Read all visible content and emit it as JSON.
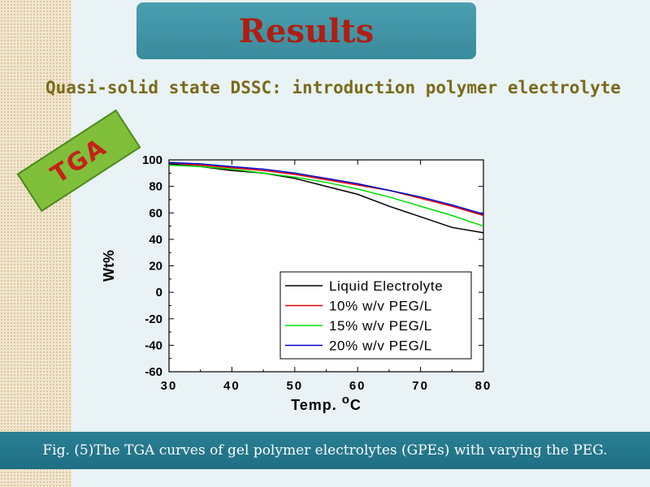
{
  "slide": {
    "title": "Results",
    "subtitle": "Quasi-solid state DSSC: introduction polymer electrolyte",
    "badge": "TGA",
    "caption": "Fig. (5)The TGA curves of gel polymer electrolytes (GPEs) with varying the PEG."
  },
  "colors": {
    "title_box": "#3a8b9c",
    "title_text": "#b01e12",
    "subtitle_text": "#7a6a1a",
    "badge_bg": "#7fbf3a",
    "badge_text": "#c4221a",
    "caption_bar": "#1f6f84"
  },
  "chart_data": {
    "type": "line",
    "title": "",
    "xlabel": "Temp. oC",
    "ylabel": "Wt%",
    "xlim": [
      30,
      80
    ],
    "ylim": [
      -60,
      100
    ],
    "xticks": [
      30,
      40,
      50,
      60,
      70,
      80
    ],
    "yticks": [
      100,
      80,
      60,
      40,
      20,
      0,
      -20,
      -40,
      -60
    ],
    "grid": false,
    "legend_position": "bottom-right",
    "x": [
      30,
      35,
      40,
      45,
      50,
      55,
      60,
      65,
      70,
      75,
      80
    ],
    "series": [
      {
        "name": "Liquid Electrolyte",
        "color": "#000000",
        "values": [
          97,
          95,
          92,
          90,
          86,
          80,
          74,
          65,
          57,
          49,
          45
        ]
      },
      {
        "name": "10% w/v PEG/L",
        "color": "#e00000",
        "values": [
          98,
          96,
          94,
          92,
          89,
          85,
          81,
          77,
          71,
          65,
          58
        ]
      },
      {
        "name": "15% w/v PEG/L",
        "color": "#00dd00",
        "values": [
          96,
          95,
          93,
          90,
          87,
          83,
          78,
          72,
          65,
          58,
          50
        ]
      },
      {
        "name": "20% w/v PEG/L",
        "color": "#0000cc",
        "values": [
          98,
          97,
          95,
          93,
          90,
          86,
          82,
          77,
          72,
          66,
          59
        ]
      }
    ]
  }
}
